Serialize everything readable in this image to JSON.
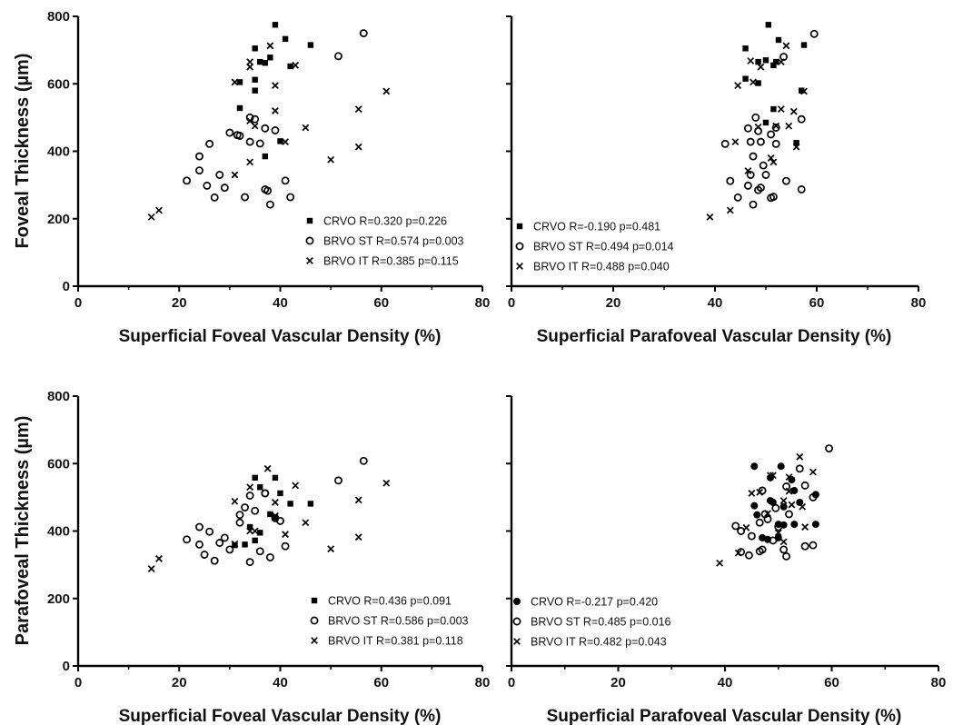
{
  "ylabels": {
    "top": "Foveal Thickness (µm)",
    "bottom": "Parafoveal Thickness (µm)"
  },
  "chart_data": [
    {
      "type": "scatter",
      "xlabel": "Superficial Foveal Vascular Density (%)",
      "xlim": [
        0,
        80
      ],
      "ylim": [
        0,
        800
      ],
      "xticks": [
        "0",
        "20",
        "40",
        "60",
        "80"
      ],
      "yticks": [
        "0",
        "200",
        "400",
        "600",
        "800"
      ],
      "legend": [
        {
          "marker": "square",
          "label": "CRVO R=0.320 p=0.226"
        },
        {
          "marker": "circle",
          "label": "BRVO ST R=0.574 p=0.003"
        },
        {
          "marker": "cross",
          "label": "BRVO IT R=0.385 p=0.115"
        }
      ],
      "series": [
        {
          "marker": "square",
          "points": [
            [
              39,
              775
            ],
            [
              41,
              733
            ],
            [
              46,
              715
            ],
            [
              35,
              705
            ],
            [
              38,
              678
            ],
            [
              36,
              665
            ],
            [
              37,
              662
            ],
            [
              42,
              652
            ],
            [
              32,
              605
            ],
            [
              35,
              612
            ],
            [
              35,
              580
            ],
            [
              32,
              528
            ],
            [
              40,
              430
            ],
            [
              37,
              385
            ]
          ]
        },
        {
          "marker": "circle",
          "points": [
            [
              56.5,
              750
            ],
            [
              51.5,
              682
            ],
            [
              34,
              500
            ],
            [
              35,
              495
            ],
            [
              37,
              468
            ],
            [
              39,
              462
            ],
            [
              30,
              455
            ],
            [
              31.5,
              448
            ],
            [
              32,
              446
            ],
            [
              34,
              428
            ],
            [
              36,
              423
            ],
            [
              26,
              422
            ],
            [
              24,
              385
            ],
            [
              24,
              343
            ],
            [
              21.5,
              313
            ],
            [
              41,
              313
            ],
            [
              28,
              330
            ],
            [
              25.5,
              298
            ],
            [
              29,
              292
            ],
            [
              37,
              287
            ],
            [
              37.5,
              283
            ],
            [
              33,
              264
            ],
            [
              27,
              263
            ],
            [
              42,
              264
            ],
            [
              38,
              242
            ]
          ]
        },
        {
          "marker": "cross",
          "points": [
            [
              38,
              713
            ],
            [
              34,
              665
            ],
            [
              43,
              655
            ],
            [
              34,
              650
            ],
            [
              31,
              605
            ],
            [
              39,
              595
            ],
            [
              61,
              578
            ],
            [
              34,
              490
            ],
            [
              35,
              475
            ],
            [
              39,
              520
            ],
            [
              45,
              470
            ],
            [
              55.5,
              525
            ],
            [
              41,
              428
            ],
            [
              55.5,
              413
            ],
            [
              34,
              368
            ],
            [
              50,
              375
            ],
            [
              31,
              330
            ],
            [
              16,
              225
            ],
            [
              14.5,
              205
            ]
          ]
        }
      ]
    },
    {
      "type": "scatter",
      "xlabel": "Superficial Parafoveal Vascular Density (%)",
      "xlim": [
        0,
        80
      ],
      "ylim": [
        0,
        800
      ],
      "xticks": [
        "0",
        "20",
        "40",
        "60",
        "80"
      ],
      "yticks": [],
      "legend": [
        {
          "marker": "square",
          "label": "CRVO R=-0.190 p=0.481"
        },
        {
          "marker": "circle",
          "label": "BRVO ST R=0.494 p=0.014"
        },
        {
          "marker": "cross",
          "label": "BRVO IT R=0.488 p=0.040"
        }
      ],
      "series": [
        {
          "marker": "square",
          "points": [
            [
              50.5,
              775
            ],
            [
              52.5,
              730
            ],
            [
              57.5,
              715
            ],
            [
              46,
              705
            ],
            [
              48.5,
              665
            ],
            [
              50,
              670
            ],
            [
              52,
              665
            ],
            [
              51.5,
              655
            ],
            [
              46,
              615
            ],
            [
              48.5,
              602
            ],
            [
              57,
              580
            ],
            [
              51.5,
              525
            ],
            [
              56,
              425
            ],
            [
              50,
              485
            ]
          ]
        },
        {
          "marker": "circle",
          "points": [
            [
              59.5,
              748
            ],
            [
              53.5,
              680
            ],
            [
              48,
              500
            ],
            [
              57,
              495
            ],
            [
              46.5,
              468
            ],
            [
              52,
              470
            ],
            [
              42,
              422
            ],
            [
              48.5,
              460
            ],
            [
              47,
              428
            ],
            [
              51,
              450
            ],
            [
              49,
              428
            ],
            [
              52,
              422
            ],
            [
              47.5,
              385
            ],
            [
              49.5,
              358
            ],
            [
              43,
              312
            ],
            [
              47,
              330
            ],
            [
              50,
              330
            ],
            [
              54,
              312
            ],
            [
              46.5,
              298
            ],
            [
              49,
              292
            ],
            [
              48.5,
              285
            ],
            [
              51.5,
              265
            ],
            [
              51,
              262
            ],
            [
              44.5,
              263
            ],
            [
              57,
              287
            ],
            [
              47.5,
              242
            ]
          ]
        },
        {
          "marker": "cross",
          "points": [
            [
              54,
              713
            ],
            [
              47,
              668
            ],
            [
              53,
              665
            ],
            [
              49,
              650
            ],
            [
              44.5,
              595
            ],
            [
              47.5,
              605
            ],
            [
              57.5,
              578
            ],
            [
              48.5,
              472
            ],
            [
              52,
              475
            ],
            [
              55.5,
              518
            ],
            [
              53,
              525
            ],
            [
              54.5,
              475
            ],
            [
              44,
              428
            ],
            [
              56,
              413
            ],
            [
              51,
              380
            ],
            [
              51.5,
              368
            ],
            [
              46.5,
              342
            ],
            [
              43,
              225
            ],
            [
              39,
              205
            ]
          ]
        }
      ]
    },
    {
      "type": "scatter",
      "xlabel": "Superficial Foveal Vascular Density (%)",
      "xlim": [
        0,
        80
      ],
      "ylim": [
        0,
        800
      ],
      "xticks": [
        "0",
        "20",
        "40",
        "60",
        "80"
      ],
      "yticks": [
        "0",
        "200",
        "400",
        "600",
        "800"
      ],
      "legend": [
        {
          "marker": "square",
          "label": "CRVO R=0.436 p=0.091"
        },
        {
          "marker": "circle",
          "label": "BRVO ST R=0.586 p=0.003"
        },
        {
          "marker": "cross",
          "label": "BRVO IT R=0.381 p=0.118"
        }
      ],
      "series": [
        {
          "marker": "square",
          "points": [
            [
              39,
              558
            ],
            [
              35,
              558
            ],
            [
              36,
              530
            ],
            [
              40,
              512
            ],
            [
              42,
              481
            ],
            [
              46,
              481
            ],
            [
              38,
              450
            ],
            [
              39,
              440
            ],
            [
              34,
              412
            ],
            [
              36,
              395
            ],
            [
              35,
              372
            ],
            [
              33,
              360
            ],
            [
              31,
              358
            ]
          ]
        },
        {
          "marker": "circle",
          "points": [
            [
              56.5,
              608
            ],
            [
              51.5,
              550
            ],
            [
              37,
              512
            ],
            [
              34,
              505
            ],
            [
              33,
              470
            ],
            [
              35,
              460
            ],
            [
              32,
              448
            ],
            [
              39,
              438
            ],
            [
              40,
              430
            ],
            [
              32,
              425
            ],
            [
              24,
              412
            ],
            [
              26,
              398
            ],
            [
              29,
              380
            ],
            [
              21.5,
              375
            ],
            [
              28,
              365
            ],
            [
              30,
              345
            ],
            [
              24,
              360
            ],
            [
              25,
              330
            ],
            [
              27,
              312
            ],
            [
              36,
              340
            ],
            [
              38,
              322
            ],
            [
              41,
              355
            ],
            [
              34,
              308
            ],
            [
              37,
              512
            ]
          ]
        },
        {
          "marker": "cross",
          "points": [
            [
              37.5,
              585
            ],
            [
              61,
              542
            ],
            [
              43,
              535
            ],
            [
              34,
              530
            ],
            [
              31,
              488
            ],
            [
              39,
              485
            ],
            [
              55.5,
              492
            ],
            [
              45,
              425
            ],
            [
              39,
              445
            ],
            [
              41,
              390
            ],
            [
              34,
              400
            ],
            [
              35,
              400
            ],
            [
              55.5,
              382
            ],
            [
              50,
              347
            ],
            [
              31,
              362
            ],
            [
              16,
              318
            ],
            [
              14.5,
              288
            ]
          ]
        }
      ]
    },
    {
      "type": "scatter",
      "xlabel": "Superficial Parafoveal Vascular Density (%)",
      "xlim": [
        0,
        80
      ],
      "ylim": [
        0,
        800
      ],
      "xticks": [
        "0",
        "20",
        "40",
        "60",
        "80"
      ],
      "yticks": [],
      "legend": [
        {
          "marker": "dot",
          "label": "CRVO R=-0.217 p=0.420"
        },
        {
          "marker": "circle",
          "label": "BRVO ST R=0.485 p=0.016"
        },
        {
          "marker": "cross",
          "label": "BRVO IT R=0.482 p=0.043"
        }
      ],
      "series": [
        {
          "marker": "dot",
          "points": [
            [
              45.5,
              592
            ],
            [
              50.5,
              592
            ],
            [
              48.5,
              558
            ],
            [
              52.5,
              552
            ],
            [
              53,
              520
            ],
            [
              57,
              508
            ],
            [
              48.5,
              490
            ],
            [
              49,
              485
            ],
            [
              45.5,
              475
            ],
            [
              51,
              472
            ],
            [
              54,
              485
            ],
            [
              46,
              448
            ],
            [
              53,
              420
            ],
            [
              50,
              420
            ],
            [
              51,
              418
            ],
            [
              57,
              420
            ],
            [
              47,
              380
            ],
            [
              48,
              375
            ],
            [
              50,
              380
            ]
          ]
        },
        {
          "marker": "circle",
          "points": [
            [
              59.5,
              645
            ],
            [
              54,
              585
            ],
            [
              51.5,
              532
            ],
            [
              47,
              520
            ],
            [
              55,
              535
            ],
            [
              56.5,
              500
            ],
            [
              49.5,
              468
            ],
            [
              47.5,
              450
            ],
            [
              52,
              450
            ],
            [
              48,
              435
            ],
            [
              42,
              415
            ],
            [
              43,
              400
            ],
            [
              46.5,
              425
            ],
            [
              50,
              412
            ],
            [
              45,
              385
            ],
            [
              47,
              345
            ],
            [
              51,
              345
            ],
            [
              55,
              355
            ],
            [
              43,
              338
            ],
            [
              44.5,
              328
            ],
            [
              51.5,
              325
            ],
            [
              56.5,
              358
            ],
            [
              46.5,
              340
            ],
            [
              49,
              372
            ]
          ]
        },
        {
          "marker": "cross",
          "points": [
            [
              54,
              620
            ],
            [
              48.5,
              565
            ],
            [
              52,
              560
            ],
            [
              46.5,
              515
            ],
            [
              52,
              518
            ],
            [
              56.5,
              575
            ],
            [
              45,
              512
            ],
            [
              51,
              490
            ],
            [
              52.5,
              478
            ],
            [
              54.5,
              472
            ],
            [
              44,
              410
            ],
            [
              48,
              452
            ],
            [
              50,
              395
            ],
            [
              51,
              368
            ],
            [
              55,
              412
            ],
            [
              42.5,
              335
            ],
            [
              39,
              305
            ],
            [
              49,
              565
            ]
          ]
        }
      ]
    }
  ]
}
